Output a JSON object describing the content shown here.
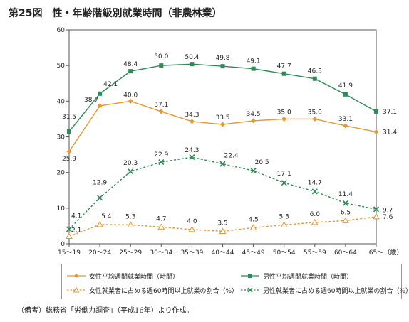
{
  "figure": {
    "title_number": "第25図",
    "title": "性・年齢階級別就業時間（非農林業）",
    "note": "（備考）総務省「労働力調査」（平成16年）より作成。"
  },
  "chart_data": {
    "type": "line",
    "categories": [
      "15～19",
      "20～24",
      "25～29",
      "30～34",
      "35～39",
      "40～44",
      "45～49",
      "50～54",
      "55～59",
      "60～64",
      "65～"
    ],
    "x_unit": "（歳）",
    "ylim": [
      0,
      60
    ],
    "yticks": [
      0,
      10,
      20,
      30,
      40,
      50,
      60
    ],
    "grid": false,
    "legend_position": "bottom",
    "series": [
      {
        "name": "女性平均週間就業時間（時間）",
        "key": "f_hours",
        "color": "#e8962e",
        "dash": false,
        "marker": "diamond",
        "values": [
          25.9,
          38.7,
          40.0,
          37.1,
          34.3,
          33.5,
          34.5,
          35.0,
          35.0,
          33.1,
          31.4
        ],
        "labels": [
          "25.9",
          "38.7",
          "40.0",
          "37.1",
          "34.3",
          "33.5",
          "34.5",
          "35.0",
          "35.0",
          "33.1",
          "31.4"
        ]
      },
      {
        "name": "男性平均週間就業時間（時間）",
        "key": "m_hours",
        "color": "#2e8b57",
        "dash": false,
        "marker": "square",
        "values": [
          31.5,
          42.1,
          48.4,
          50.0,
          50.4,
          49.8,
          49.1,
          47.7,
          46.3,
          41.9,
          37.1
        ],
        "labels": [
          "31.5",
          "42.1",
          "48.4",
          "50.0",
          "50.4",
          "49.8",
          "49.1",
          "47.7",
          "46.3",
          "41.9",
          "37.1"
        ]
      },
      {
        "name": "女性就業者に占める週60時間以上就業の割合（%）",
        "key": "f_ratio",
        "color": "#e8962e",
        "dash": true,
        "marker": "triangle",
        "values": [
          2.1,
          5.4,
          5.3,
          4.7,
          4.0,
          3.5,
          4.5,
          5.3,
          6.0,
          6.5,
          7.6
        ],
        "labels": [
          "2.1",
          "5.4",
          "5.3",
          "4.7",
          "4.0",
          "3.5",
          "4.5",
          "5.3",
          "6.0",
          "6.5",
          "7.6"
        ]
      },
      {
        "name": "男性就業者に占める週60時間以上就業の割合（%）",
        "key": "m_ratio",
        "color": "#2e8b57",
        "dash": true,
        "marker": "x",
        "values": [
          4.1,
          12.9,
          20.3,
          22.9,
          24.3,
          22.4,
          20.5,
          17.1,
          14.7,
          11.4,
          9.7
        ],
        "labels": [
          "4.1",
          "12.9",
          "20.3",
          "22.9",
          "24.3",
          "22.4",
          "20.5",
          "17.1",
          "14.7",
          "11.4",
          "9.7"
        ]
      }
    ]
  }
}
